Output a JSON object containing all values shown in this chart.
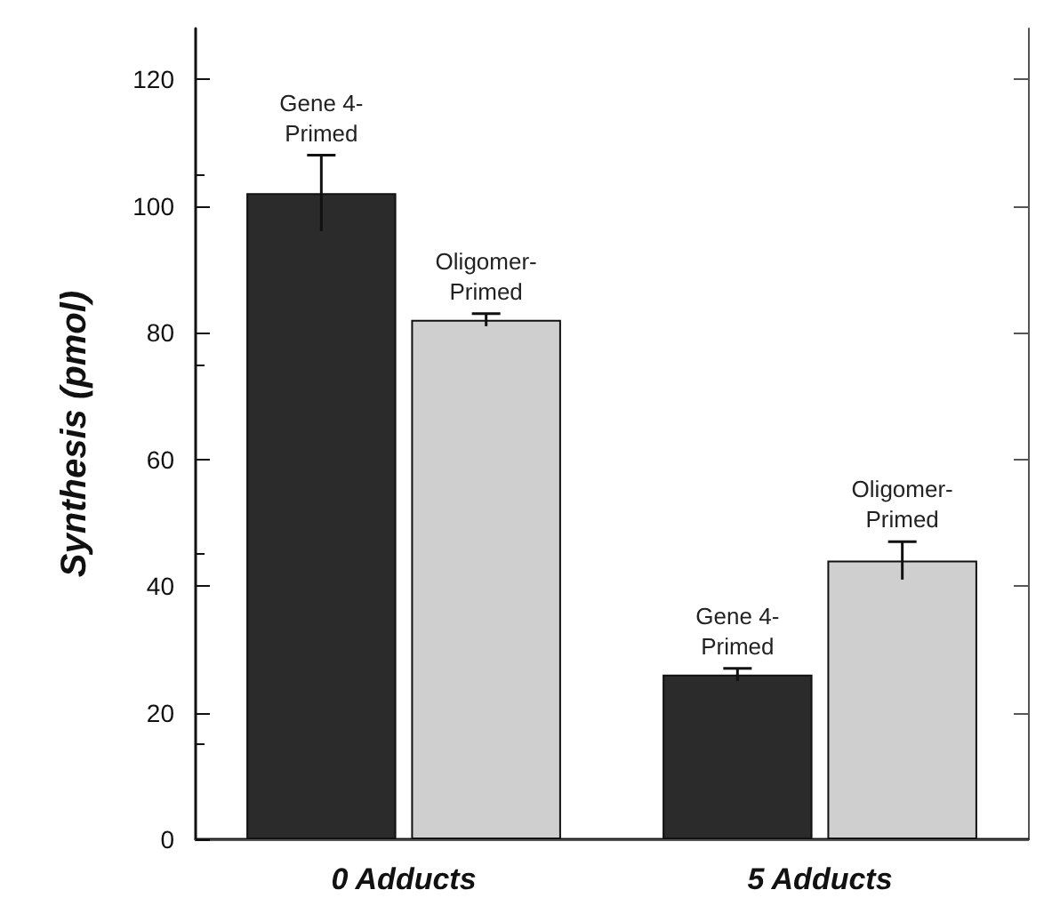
{
  "chart_data": {
    "type": "bar",
    "ylabel": "Synthesis (pmol)",
    "categories": [
      "0 Adducts",
      "5 Adducts"
    ],
    "series": [
      {
        "name": "Gene 4-Primed",
        "color": "#2b2b2b",
        "values": [
          102,
          26
        ],
        "errors": [
          6,
          1
        ]
      },
      {
        "name": "Oligomer-Primed",
        "color": "#cfcfcf",
        "values": [
          82,
          44
        ],
        "errors": [
          1,
          3
        ]
      }
    ],
    "ylim": [
      0,
      128
    ],
    "yticks": [
      0,
      20,
      40,
      60,
      80,
      100,
      120
    ],
    "grid": false,
    "legend": false
  }
}
